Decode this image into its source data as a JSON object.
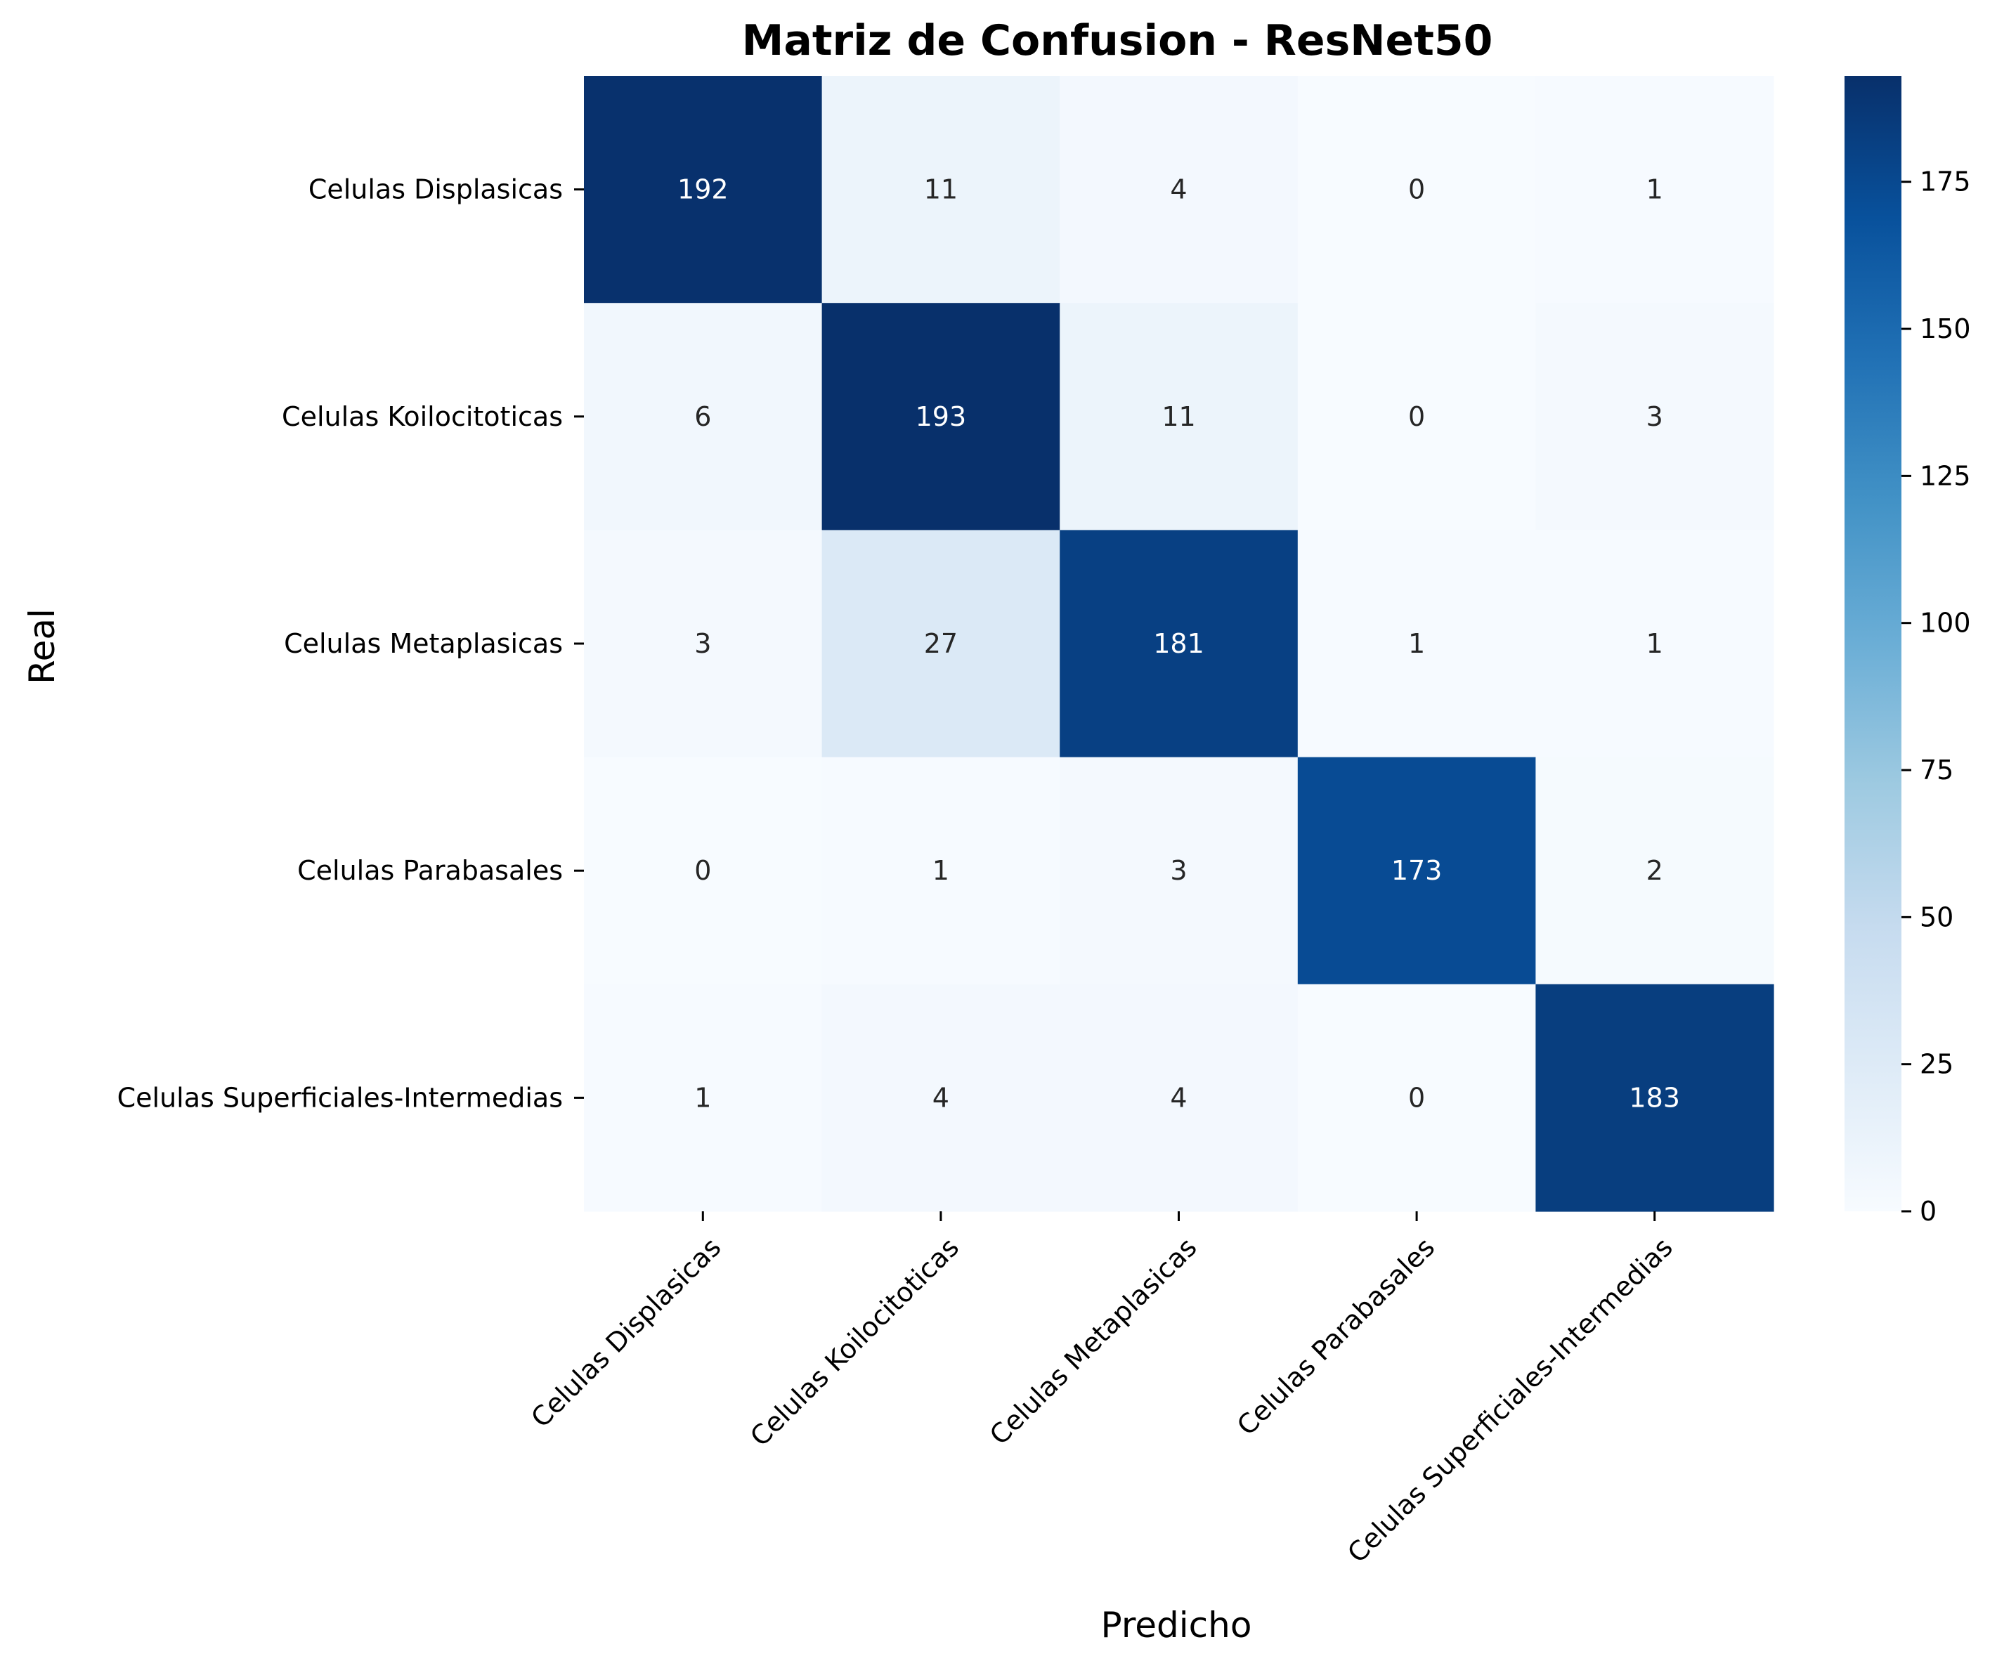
{
  "chart_data": {
    "type": "heatmap",
    "title": "Matriz de Confusion - ResNet50",
    "xlabel": "Predicho",
    "ylabel": "Real",
    "x_categories": [
      "Celulas Displasicas",
      "Celulas Koilocitoticas",
      "Celulas Metaplasicas",
      "Celulas Parabasales",
      "Celulas Superficiales-Intermedias"
    ],
    "y_categories": [
      "Celulas Displasicas",
      "Celulas Koilocitoticas",
      "Celulas Metaplasicas",
      "Celulas Parabasales",
      "Celulas Superficiales-Intermedias"
    ],
    "values": [
      [
        192,
        11,
        4,
        0,
        1
      ],
      [
        6,
        193,
        11,
        0,
        3
      ],
      [
        3,
        27,
        181,
        1,
        1
      ],
      [
        0,
        1,
        3,
        173,
        2
      ],
      [
        1,
        4,
        4,
        0,
        183
      ]
    ],
    "colormap": "Blues",
    "colorbar": {
      "min": 0,
      "max": 193,
      "ticks": [
        0,
        25,
        50,
        75,
        100,
        125,
        150,
        175
      ]
    },
    "grid": false
  }
}
